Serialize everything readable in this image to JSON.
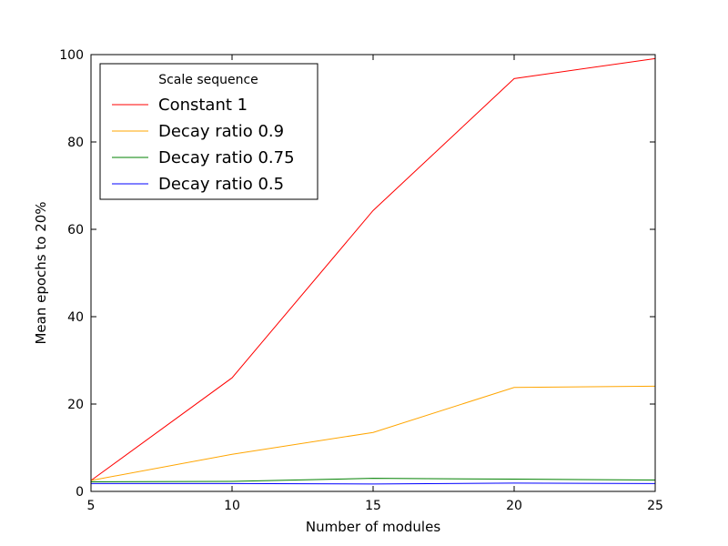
{
  "chart_data": {
    "type": "line",
    "title": "",
    "xlabel": "Number of modules",
    "ylabel": "Mean epochs to 20%",
    "x": [
      5,
      10,
      15,
      20,
      25
    ],
    "xlim": [
      5,
      25
    ],
    "ylim": [
      0,
      100
    ],
    "xticks": [
      "5",
      "10",
      "15",
      "20",
      "25"
    ],
    "yticks": [
      "0",
      "20",
      "40",
      "60",
      "80",
      "100"
    ],
    "grid": false,
    "legend": {
      "title": "Scale sequence",
      "placement": "top-left"
    },
    "series": [
      {
        "name": "Constant 1",
        "color": "#ff0000",
        "values": [
          2.5,
          26,
          64.3,
          94.5,
          99.1
        ]
      },
      {
        "name": "Decay ratio 0.9",
        "color": "#ffa500",
        "values": [
          2.5,
          8.5,
          13.5,
          23.8,
          24.1
        ]
      },
      {
        "name": "Decay ratio 0.75",
        "color": "#008000",
        "values": [
          2.2,
          2.3,
          3.0,
          2.8,
          2.6
        ]
      },
      {
        "name": "Decay ratio 0.5",
        "color": "#0000ff",
        "values": [
          1.8,
          1.8,
          1.7,
          1.9,
          1.8
        ]
      }
    ]
  }
}
